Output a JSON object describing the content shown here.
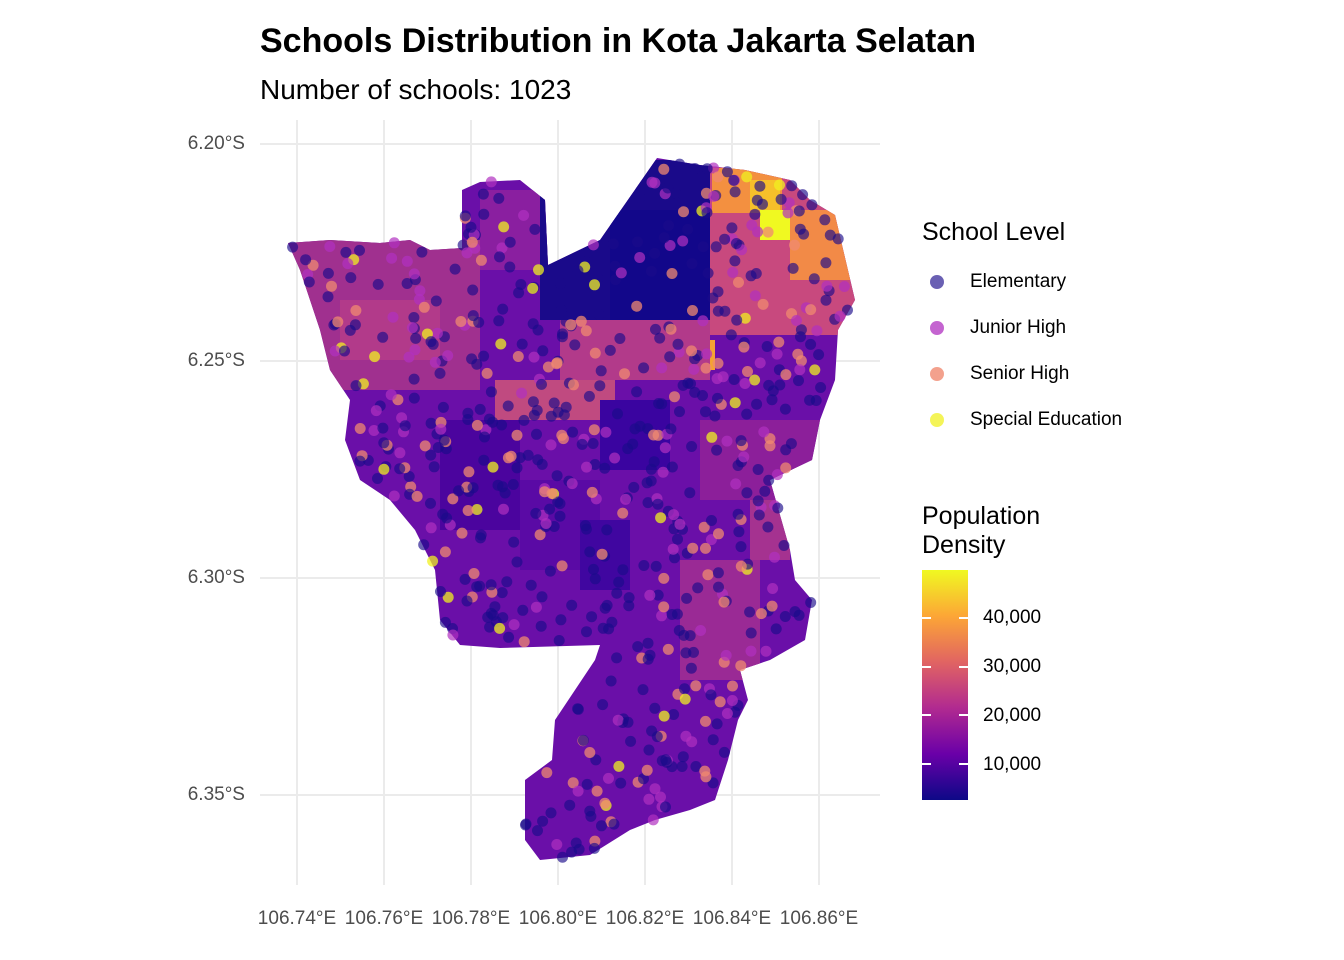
{
  "title": "Schools Distribution in Kota Jakarta Selatan",
  "subtitle": "Number of schools: 1023",
  "y_ticks": [
    "6.20°S",
    "6.25°S",
    "6.30°S",
    "6.35°S"
  ],
  "x_ticks": [
    "106.74°E",
    "106.76°E",
    "106.78°E",
    "106.80°E",
    "106.82°E",
    "106.84°E",
    "106.86°E"
  ],
  "legend_school": {
    "title": "School Level",
    "items": [
      {
        "label": "Elementary",
        "color": "#1a0a8a"
      },
      {
        "label": "Junior High",
        "color": "#b030c0"
      },
      {
        "label": "Senior High",
        "color": "#f08a70"
      },
      {
        "label": "Special Education",
        "color": "#f0f020"
      }
    ]
  },
  "legend_density": {
    "title_line1": "Population",
    "title_line2": "Density",
    "ticks": [
      "40,000",
      "30,000",
      "20,000",
      "10,000"
    ],
    "tick_values": [
      40000,
      30000,
      20000,
      10000
    ],
    "range": [
      2500,
      50000
    ],
    "colors": [
      "#0d0887",
      "#6a00a8",
      "#b12a90",
      "#e16462",
      "#fca636",
      "#f0f921"
    ]
  },
  "chart_data": {
    "type": "map",
    "region": "Kota Jakarta Selatan",
    "school_count": 1023,
    "lon_range": [
      106.73,
      106.875
    ],
    "lat_range": [
      -6.37,
      -6.195
    ]
  }
}
